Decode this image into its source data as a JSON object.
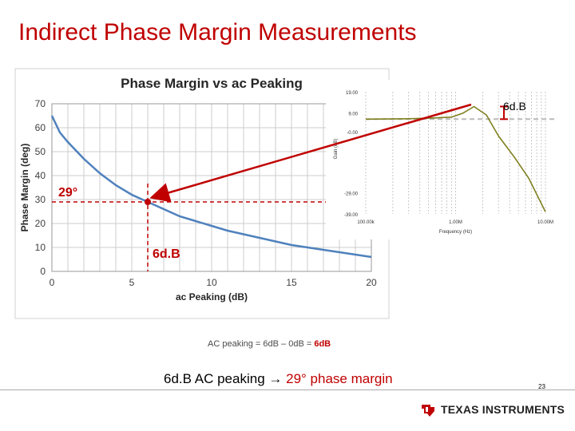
{
  "slide": {
    "title": "Indirect Phase Margin Measurements",
    "page_number": "23",
    "equation_prefix": "AC peaking = 6dB – 0dB = ",
    "equation_result": "6dB",
    "caption_prefix": "6d.B AC peaking ",
    "caption_arrow": "→",
    "caption_result": "29° phase margin",
    "bode_annotation": "6d.B",
    "logo_text_1": "Texas",
    "logo_text_2": "Instruments"
  },
  "colors": {
    "title": "#c00000",
    "curve": "#4f81bd",
    "marker": "#c00000",
    "bode_curve": "#7f7f1f",
    "arrow": "#c00000"
  },
  "chart_data": [
    {
      "type": "line",
      "title": "Phase Margin vs ac Peaking",
      "xlabel": "ac Peaking (dB)",
      "ylabel": "Phase Margin (deg)",
      "xlim": [
        0,
        20
      ],
      "ylim": [
        0,
        70
      ],
      "xticks": [
        "0",
        "5",
        "10",
        "15",
        "20"
      ],
      "yticks": [
        "0",
        "10",
        "20",
        "30",
        "40",
        "50",
        "60",
        "70"
      ],
      "grid": true,
      "series": [
        {
          "x": [
            0,
            0.5,
            1,
            2,
            3,
            4,
            5,
            6,
            7,
            8,
            9,
            10,
            11,
            12,
            13,
            14,
            15,
            16,
            17,
            18,
            19,
            20
          ],
          "values": [
            65,
            58,
            54,
            47,
            41,
            36,
            32,
            29,
            26,
            23,
            21,
            19,
            17,
            15.5,
            14,
            12.5,
            11,
            10,
            9,
            8,
            7,
            6
          ]
        }
      ],
      "highlight": {
        "x": 6,
        "y": 29,
        "x_label": "6d.B",
        "y_label": "29°"
      }
    },
    {
      "type": "line",
      "xlabel": "Frequency (Hz)",
      "ylabel": "Gain (dB)",
      "ylim": [
        -39,
        19
      ],
      "yticks": [
        "19.00",
        "9.00",
        "-0.00",
        "-29.00",
        "-39.00"
      ],
      "xticks": [
        "100.00k",
        "1.00M",
        "10.00M"
      ],
      "x_log": true,
      "series": [
        {
          "x": [
            100000,
            300000,
            600000,
            900000,
            1200000,
            1600000,
            2200000,
            3000000,
            4500000,
            6500000,
            10000000
          ],
          "values": [
            6.0,
            6.2,
            6.6,
            7.0,
            8.8,
            12.0,
            8.0,
            -2.0,
            -12.0,
            -22.0,
            -38.0
          ]
        }
      ],
      "reference_line": 6.0
    }
  ]
}
